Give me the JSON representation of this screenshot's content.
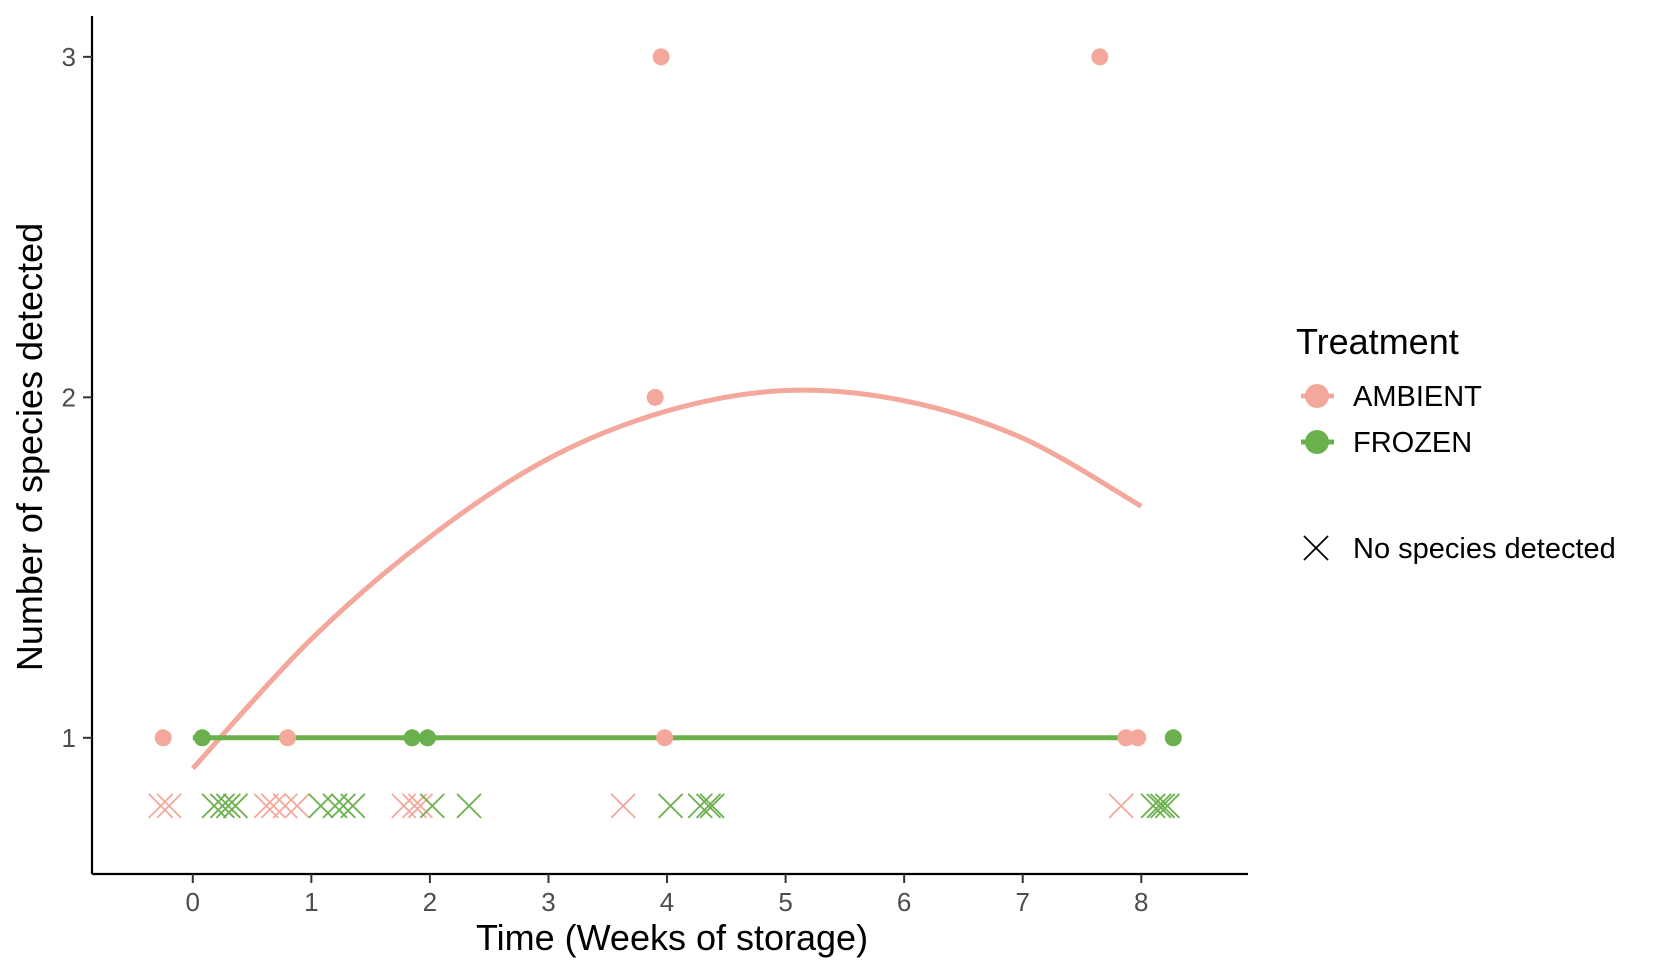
{
  "chart_data": {
    "type": "scatter",
    "title": "",
    "xlabel": "Time (Weeks of storage)",
    "ylabel": "Number of species detected",
    "xlim": [
      -0.85,
      8.9
    ],
    "ylim": [
      0.6,
      3.12
    ],
    "x_ticks": [
      0,
      1,
      2,
      3,
      4,
      5,
      6,
      7,
      8
    ],
    "y_ticks": [
      1,
      2,
      3
    ],
    "grid": false,
    "legend": {
      "title": "Treatment",
      "placement": "right",
      "entries": [
        "AMBIENT",
        "FROZEN"
      ],
      "extra_label": "No species detected"
    },
    "series": [
      {
        "name": "AMBIENT",
        "color": "#F4A89C",
        "points_x": [
          -0.25,
          0.8,
          3.9,
          3.95,
          3.98,
          7.65,
          7.87,
          7.97
        ],
        "points_y": [
          1,
          1,
          2,
          3,
          1,
          3,
          1,
          1
        ],
        "no_detection_x": [
          -0.27,
          -0.2,
          0.62,
          0.68,
          0.78,
          0.88,
          1.78,
          1.87,
          1.92,
          3.63,
          7.83
        ],
        "fit_x": [
          0,
          1,
          2,
          3,
          4,
          5,
          6,
          7,
          8
        ],
        "fit_y": [
          0.91,
          1.29,
          1.59,
          1.82,
          1.96,
          2.02,
          1.99,
          1.88,
          1.68
        ]
      },
      {
        "name": "FROZEN",
        "color": "#6AB04C",
        "points_x": [
          0.08,
          1.85,
          1.98,
          8.27
        ],
        "points_y": [
          1,
          1,
          1,
          1
        ],
        "no_detection_x": [
          0.18,
          0.25,
          0.3,
          0.36,
          1.08,
          1.2,
          1.27,
          1.35,
          2.02,
          2.33,
          4.03,
          4.28,
          4.35,
          4.38,
          8.1,
          8.15,
          8.18,
          8.22
        ],
        "fit_x": [
          0,
          8
        ],
        "fit_y": [
          1,
          1
        ]
      }
    ],
    "no_detection_y": 0.8
  }
}
